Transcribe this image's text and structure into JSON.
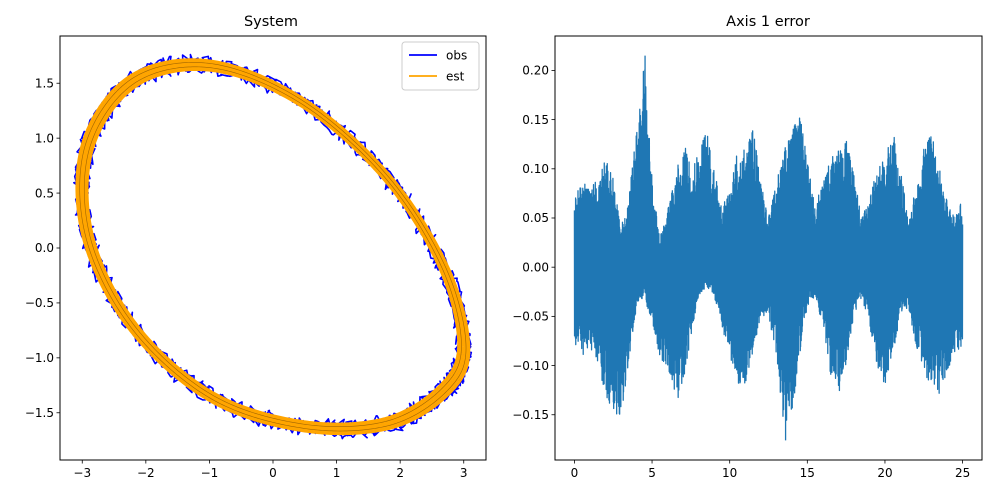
{
  "chart_data": [
    {
      "type": "line",
      "title": "System",
      "xlabel": "",
      "ylabel": "",
      "xlim": [
        -3.35,
        3.35
      ],
      "ylim": [
        -1.93,
        1.93
      ],
      "xticks": [
        -3,
        -2,
        -1,
        0,
        1,
        2,
        3
      ],
      "xtick_labels": [
        "−3",
        "−2",
        "−1",
        "0",
        "1",
        "2",
        "3"
      ],
      "yticks": [
        -1.5,
        -1.0,
        -0.5,
        0.0,
        0.5,
        1.0,
        1.5
      ],
      "ytick_labels": [
        "−1.5",
        "−1.0",
        "−0.5",
        "0.0",
        "0.5",
        "1.0",
        "1.5"
      ],
      "grid": false,
      "legend_position": "upper right",
      "series": [
        {
          "name": "obs",
          "color": "#0000ff",
          "shape": "ellipse",
          "x": [
            3.0,
            2.68,
            1.78,
            0.45,
            -0.98,
            -2.2,
            -2.91,
            -2.92,
            -2.2,
            -0.98,
            0.45,
            1.78,
            2.68,
            3.0
          ],
          "y": [
            -0.9,
            -1.3,
            -1.6,
            -1.62,
            -1.35,
            -0.72,
            0.1,
            0.92,
            1.52,
            1.66,
            1.33,
            0.65,
            -0.17,
            -0.9
          ],
          "noise_amplitude": 0.06
        },
        {
          "name": "est",
          "color": "#ffa500",
          "shape": "ellipse",
          "x": [
            3.0,
            2.68,
            1.78,
            0.45,
            -0.98,
            -2.2,
            -2.91,
            -2.92,
            -2.2,
            -0.98,
            0.45,
            1.78,
            2.68,
            3.0
          ],
          "y": [
            -0.9,
            -1.3,
            -1.6,
            -1.62,
            -1.35,
            -0.72,
            0.1,
            0.92,
            1.52,
            1.66,
            1.33,
            0.65,
            -0.17,
            -0.9
          ]
        }
      ]
    },
    {
      "type": "line",
      "title": "Axis 1 error",
      "xlabel": "",
      "ylabel": "",
      "xlim": [
        -1.25,
        26.25
      ],
      "ylim": [
        -0.196,
        0.235
      ],
      "xticks": [
        0,
        5,
        10,
        15,
        20,
        25
      ],
      "xtick_labels": [
        "0",
        "5",
        "10",
        "15",
        "20",
        "25"
      ],
      "yticks": [
        -0.15,
        -0.1,
        -0.05,
        0.0,
        0.05,
        0.1,
        0.15,
        0.2
      ],
      "ytick_labels": [
        "−0.15",
        "−0.10",
        "−0.05",
        "0.00",
        "0.05",
        "0.10",
        "0.15",
        "0.20"
      ],
      "grid": false,
      "series": [
        {
          "name": "",
          "color": "#1f77b4",
          "x_range": [
            0,
            25
          ],
          "envelope_t": [
            0,
            0.5,
            1.0,
            1.5,
            2.0,
            2.5,
            3.0,
            3.5,
            4.0,
            4.5,
            5.0,
            5.5,
            6.0,
            6.5,
            7.0,
            7.5,
            8.0,
            8.5,
            9.0,
            9.5,
            10.0,
            10.5,
            11.0,
            11.5,
            12.0,
            12.5,
            13.0,
            13.5,
            14.0,
            14.5,
            15.0,
            15.5,
            16.0,
            16.5,
            17.0,
            17.5,
            18.0,
            18.5,
            19.0,
            19.5,
            20.0,
            20.5,
            21.0,
            21.5,
            22.0,
            22.5,
            23.0,
            23.5,
            24.0,
            24.5,
            25.0
          ],
          "envelope_max": [
            0.07,
            0.09,
            0.08,
            0.09,
            0.11,
            0.09,
            0.04,
            0.07,
            0.14,
            0.21,
            0.09,
            0.03,
            0.06,
            0.09,
            0.13,
            0.1,
            0.12,
            0.14,
            0.1,
            0.06,
            0.08,
            0.12,
            0.12,
            0.14,
            0.09,
            0.05,
            0.09,
            0.12,
            0.14,
            0.16,
            0.11,
            0.06,
            0.09,
            0.11,
            0.12,
            0.13,
            0.1,
            0.05,
            0.07,
            0.1,
            0.11,
            0.14,
            0.1,
            0.05,
            0.08,
            0.12,
            0.14,
            0.1,
            0.07,
            0.05,
            0.07
          ],
          "envelope_min": [
            -0.08,
            -0.09,
            -0.08,
            -0.1,
            -0.13,
            -0.15,
            -0.15,
            -0.1,
            -0.04,
            -0.03,
            -0.06,
            -0.09,
            -0.11,
            -0.14,
            -0.12,
            -0.07,
            -0.03,
            -0.02,
            -0.03,
            -0.06,
            -0.09,
            -0.12,
            -0.12,
            -0.09,
            -0.05,
            -0.05,
            -0.09,
            -0.17,
            -0.15,
            -0.09,
            -0.04,
            -0.03,
            -0.06,
            -0.11,
            -0.13,
            -0.1,
            -0.05,
            -0.03,
            -0.06,
            -0.1,
            -0.12,
            -0.09,
            -0.05,
            -0.04,
            -0.08,
            -0.11,
            -0.12,
            -0.13,
            -0.11,
            -0.09,
            -0.08
          ],
          "min_value": -0.176,
          "max_value": 0.215
        }
      ]
    }
  ]
}
